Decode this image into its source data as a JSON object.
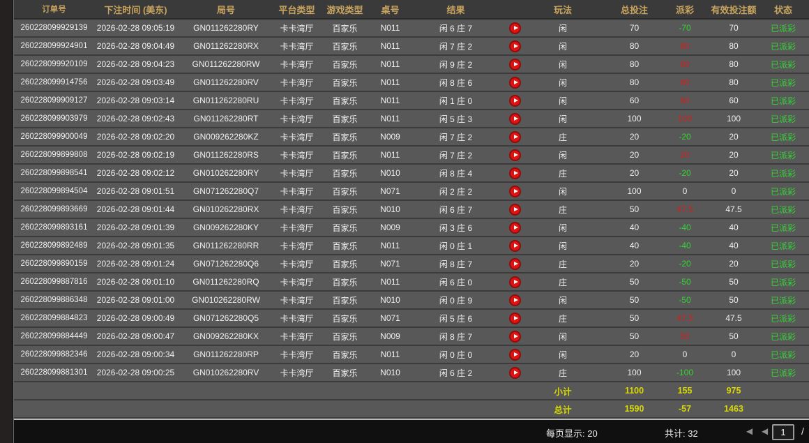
{
  "colors": {
    "header_text": "#c9a55f",
    "win_red": "#cf2121",
    "loss_green": "#35d435",
    "summary_yellow": "#d9d800",
    "status_green": "#35d435"
  },
  "table": {
    "columns": [
      {
        "label": "订单号"
      },
      {
        "label": "下注时间 (美东)"
      },
      {
        "label": "局号"
      },
      {
        "label": "平台类型"
      },
      {
        "label": "游戏类型"
      },
      {
        "label": "桌号"
      },
      {
        "label": "结果"
      },
      {
        "label": ""
      },
      {
        "label": "玩法"
      },
      {
        "label": "总投注"
      },
      {
        "label": "派彩"
      },
      {
        "label": "有效投注额"
      },
      {
        "label": "状态"
      }
    ],
    "play_icon": "replay-video-play-icon",
    "rows": [
      {
        "order_id": "260228099929139",
        "bet_time": "2026-02-28 09:05:19",
        "round_id": "GN011262280RY",
        "platform": "卡卡湾厅",
        "game_type": "百家乐",
        "table_no": "N011",
        "result": "闲 6 庄 7",
        "play": "闲",
        "total_bet": "70",
        "payout": "-70",
        "payout_class": "loss",
        "valid_bet": "70",
        "status": "已派彩"
      },
      {
        "order_id": "260228099924901",
        "bet_time": "2026-02-28 09:04:49",
        "round_id": "GN011262280RX",
        "platform": "卡卡湾厅",
        "game_type": "百家乐",
        "table_no": "N011",
        "result": "闲 7 庄 2",
        "play": "闲",
        "total_bet": "80",
        "payout": "80",
        "payout_class": "win",
        "valid_bet": "80",
        "status": "已派彩"
      },
      {
        "order_id": "260228099920109",
        "bet_time": "2026-02-28 09:04:23",
        "round_id": "GN011262280RW",
        "platform": "卡卡湾厅",
        "game_type": "百家乐",
        "table_no": "N011",
        "result": "闲 9 庄 2",
        "play": "闲",
        "total_bet": "80",
        "payout": "80",
        "payout_class": "win",
        "valid_bet": "80",
        "status": "已派彩"
      },
      {
        "order_id": "260228099914756",
        "bet_time": "2026-02-28 09:03:49",
        "round_id": "GN011262280RV",
        "platform": "卡卡湾厅",
        "game_type": "百家乐",
        "table_no": "N011",
        "result": "闲 8 庄 6",
        "play": "闲",
        "total_bet": "80",
        "payout": "80",
        "payout_class": "win",
        "valid_bet": "80",
        "status": "已派彩"
      },
      {
        "order_id": "260228099909127",
        "bet_time": "2026-02-28 09:03:14",
        "round_id": "GN011262280RU",
        "platform": "卡卡湾厅",
        "game_type": "百家乐",
        "table_no": "N011",
        "result": "闲 1 庄 0",
        "play": "闲",
        "total_bet": "60",
        "payout": "60",
        "payout_class": "win",
        "valid_bet": "60",
        "status": "已派彩"
      },
      {
        "order_id": "260228099903979",
        "bet_time": "2026-02-28 09:02:43",
        "round_id": "GN011262280RT",
        "platform": "卡卡湾厅",
        "game_type": "百家乐",
        "table_no": "N011",
        "result": "闲 5 庄 3",
        "play": "闲",
        "total_bet": "100",
        "payout": "100",
        "payout_class": "win",
        "valid_bet": "100",
        "status": "已派彩"
      },
      {
        "order_id": "260228099900049",
        "bet_time": "2026-02-28 09:02:20",
        "round_id": "GN009262280KZ",
        "platform": "卡卡湾厅",
        "game_type": "百家乐",
        "table_no": "N009",
        "result": "闲 7 庄 2",
        "play": "庄",
        "total_bet": "20",
        "payout": "-20",
        "payout_class": "loss",
        "valid_bet": "20",
        "status": "已派彩"
      },
      {
        "order_id": "260228099899808",
        "bet_time": "2026-02-28 09:02:19",
        "round_id": "GN011262280RS",
        "platform": "卡卡湾厅",
        "game_type": "百家乐",
        "table_no": "N011",
        "result": "闲 7 庄 2",
        "play": "闲",
        "total_bet": "20",
        "payout": "20",
        "payout_class": "win",
        "valid_bet": "20",
        "status": "已派彩"
      },
      {
        "order_id": "260228099898541",
        "bet_time": "2026-02-28 09:02:12",
        "round_id": "GN010262280RY",
        "platform": "卡卡湾厅",
        "game_type": "百家乐",
        "table_no": "N010",
        "result": "闲 8 庄 4",
        "play": "庄",
        "total_bet": "20",
        "payout": "-20",
        "payout_class": "loss",
        "valid_bet": "20",
        "status": "已派彩"
      },
      {
        "order_id": "260228099894504",
        "bet_time": "2026-02-28 09:01:51",
        "round_id": "GN071262280Q7",
        "platform": "卡卡湾厅",
        "game_type": "百家乐",
        "table_no": "N071",
        "result": "闲 2 庄 2",
        "play": "闲",
        "total_bet": "100",
        "payout": "0",
        "payout_class": "zero",
        "valid_bet": "0",
        "status": "已派彩"
      },
      {
        "order_id": "260228099893669",
        "bet_time": "2026-02-28 09:01:44",
        "round_id": "GN010262280RX",
        "platform": "卡卡湾厅",
        "game_type": "百家乐",
        "table_no": "N010",
        "result": "闲 6 庄 7",
        "play": "庄",
        "total_bet": "50",
        "payout": "47.5",
        "payout_class": "win",
        "valid_bet": "47.5",
        "status": "已派彩"
      },
      {
        "order_id": "260228099893161",
        "bet_time": "2026-02-28 09:01:39",
        "round_id": "GN009262280KY",
        "platform": "卡卡湾厅",
        "game_type": "百家乐",
        "table_no": "N009",
        "result": "闲 3 庄 6",
        "play": "闲",
        "total_bet": "40",
        "payout": "-40",
        "payout_class": "loss",
        "valid_bet": "40",
        "status": "已派彩"
      },
      {
        "order_id": "260228099892489",
        "bet_time": "2026-02-28 09:01:35",
        "round_id": "GN011262280RR",
        "platform": "卡卡湾厅",
        "game_type": "百家乐",
        "table_no": "N011",
        "result": "闲 0 庄 1",
        "play": "闲",
        "total_bet": "40",
        "payout": "-40",
        "payout_class": "loss",
        "valid_bet": "40",
        "status": "已派彩"
      },
      {
        "order_id": "260228099890159",
        "bet_time": "2026-02-28 09:01:24",
        "round_id": "GN071262280Q6",
        "platform": "卡卡湾厅",
        "game_type": "百家乐",
        "table_no": "N071",
        "result": "闲 8 庄 7",
        "play": "庄",
        "total_bet": "20",
        "payout": "-20",
        "payout_class": "loss",
        "valid_bet": "20",
        "status": "已派彩"
      },
      {
        "order_id": "260228099887816",
        "bet_time": "2026-02-28 09:01:10",
        "round_id": "GN011262280RQ",
        "platform": "卡卡湾厅",
        "game_type": "百家乐",
        "table_no": "N011",
        "result": "闲 6 庄 0",
        "play": "庄",
        "total_bet": "50",
        "payout": "-50",
        "payout_class": "loss",
        "valid_bet": "50",
        "status": "已派彩"
      },
      {
        "order_id": "260228099886348",
        "bet_time": "2026-02-28 09:01:00",
        "round_id": "GN010262280RW",
        "platform": "卡卡湾厅",
        "game_type": "百家乐",
        "table_no": "N010",
        "result": "闲 0 庄 9",
        "play": "闲",
        "total_bet": "50",
        "payout": "-50",
        "payout_class": "loss",
        "valid_bet": "50",
        "status": "已派彩"
      },
      {
        "order_id": "260228099884823",
        "bet_time": "2026-02-28 09:00:49",
        "round_id": "GN071262280Q5",
        "platform": "卡卡湾厅",
        "game_type": "百家乐",
        "table_no": "N071",
        "result": "闲 5 庄 6",
        "play": "庄",
        "total_bet": "50",
        "payout": "47.5",
        "payout_class": "win",
        "valid_bet": "47.5",
        "status": "已派彩"
      },
      {
        "order_id": "260228099884449",
        "bet_time": "2026-02-28 09:00:47",
        "round_id": "GN009262280KX",
        "platform": "卡卡湾厅",
        "game_type": "百家乐",
        "table_no": "N009",
        "result": "闲 8 庄 7",
        "play": "闲",
        "total_bet": "50",
        "payout": "50",
        "payout_class": "win",
        "valid_bet": "50",
        "status": "已派彩"
      },
      {
        "order_id": "260228099882346",
        "bet_time": "2026-02-28 09:00:34",
        "round_id": "GN011262280RP",
        "platform": "卡卡湾厅",
        "game_type": "百家乐",
        "table_no": "N011",
        "result": "闲 0 庄 0",
        "play": "闲",
        "total_bet": "20",
        "payout": "0",
        "payout_class": "zero",
        "valid_bet": "0",
        "status": "已派彩"
      },
      {
        "order_id": "260228099881301",
        "bet_time": "2026-02-28 09:00:25",
        "round_id": "GN010262280RV",
        "platform": "卡卡湾厅",
        "game_type": "百家乐",
        "table_no": "N010",
        "result": "闲 6 庄 2",
        "play": "庄",
        "total_bet": "100",
        "payout": "-100",
        "payout_class": "loss",
        "valid_bet": "100",
        "status": "已派彩"
      }
    ],
    "subtotal": {
      "label": "小计",
      "total_bet": "1100",
      "payout": "155",
      "valid_bet": "975"
    },
    "total": {
      "label": "总计",
      "total_bet": "1590",
      "payout": "-57",
      "valid_bet": "1463"
    }
  },
  "pagination": {
    "per_page_label": "每页显示: 20",
    "total_label": "共计: 32",
    "first_icon": "◀",
    "prev_icon": "◀",
    "page_value": "1",
    "separator": "/"
  }
}
